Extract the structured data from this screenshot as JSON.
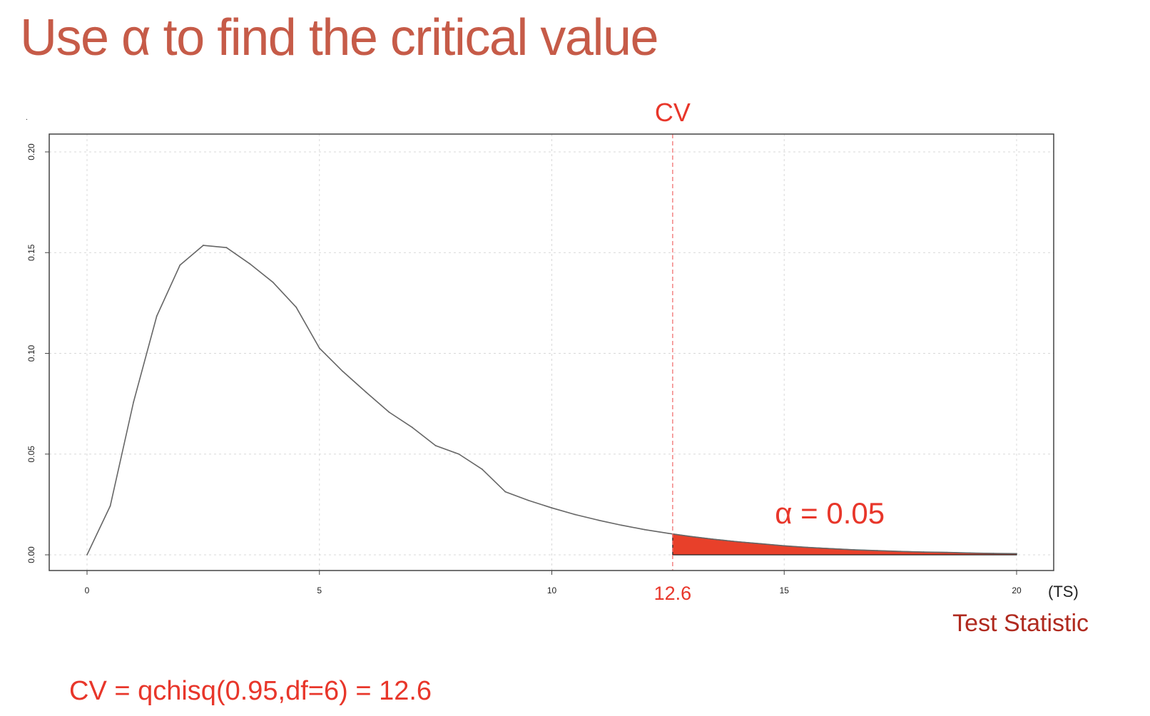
{
  "slide": {
    "title": "Use α to find the critical value",
    "title_color": "#c65b48",
    "formula": "CV = qchisq(0.95,df=6) = 12.6",
    "formula_color": "#e8362a"
  },
  "chart_data": {
    "type": "area",
    "title": "",
    "xlabel": "Test Statistic",
    "x_unit_label": "(TS)",
    "ylabel": "",
    "xlim": [
      0,
      20
    ],
    "ylim": [
      0,
      0.2
    ],
    "x_ticks": [
      "0",
      "5",
      "10",
      "15",
      "20"
    ],
    "y_ticks": [
      "0.00",
      "0.05",
      "0.10",
      "0.15",
      "0.20"
    ],
    "grid": true,
    "distribution": "chi-square",
    "df": 6,
    "series": [
      {
        "x": [
          0,
          0.5,
          1,
          1.5,
          2,
          2.5,
          3,
          3.5,
          4,
          4.5,
          5,
          5.5,
          6,
          6.5,
          7,
          7.5,
          8,
          8.5,
          9,
          9.5,
          10,
          10.5,
          11,
          11.5,
          12,
          12.5,
          13,
          13.5,
          14,
          14.5,
          15,
          15.5,
          16,
          16.5,
          17,
          17.5,
          18,
          18.5,
          19,
          19.5,
          20
        ],
        "y": [
          0,
          0.0243,
          0.0758,
          0.1185,
          0.1438,
          0.1536,
          0.1525,
          0.1445,
          0.1353,
          0.1229,
          0.1026,
          0.0911,
          0.0808,
          0.0708,
          0.0632,
          0.0542,
          0.05,
          0.0425,
          0.0313,
          0.027,
          0.0233,
          0.02,
          0.0172,
          0.0147,
          0.0125,
          0.0107,
          0.0091,
          0.0077,
          0.0065,
          0.0055,
          0.0045,
          0.0037,
          0.0031,
          0.0025,
          0.0021,
          0.0017,
          0.0014,
          0.0012,
          0.0009,
          0.0007,
          0.0006
        ],
        "color": "#666666"
      }
    ],
    "critical_value": 12.6,
    "critical_label": "CV",
    "critical_value_label": "12.6",
    "shaded_region": {
      "from": 12.6,
      "to": 20,
      "color": "#e8402a"
    },
    "alpha_label": "α = 0.05",
    "annotation_color": "#e8362a",
    "xlabel_color": "#b02a1f"
  }
}
